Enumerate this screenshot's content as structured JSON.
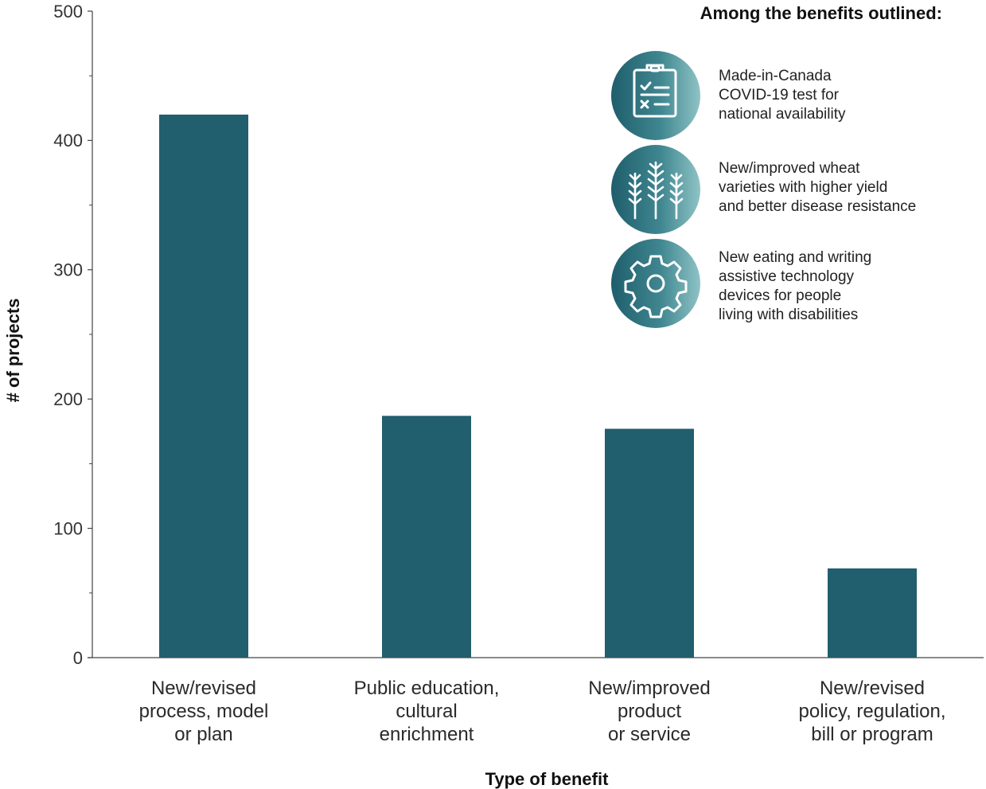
{
  "chart_data": {
    "type": "bar",
    "categories": [
      [
        "New/revised",
        "process, model",
        "or plan"
      ],
      [
        "Public education,",
        "cultural",
        "enrichment"
      ],
      [
        "New/improved",
        "product",
        "or service"
      ],
      [
        "New/revised",
        "policy, regulation,",
        "bill or program"
      ]
    ],
    "values": [
      420,
      187,
      177,
      69
    ],
    "xlabel": "Type of benefit",
    "ylabel": "# of projects",
    "ylim": [
      0,
      500
    ],
    "yticks": [
      "0",
      "100",
      "200",
      "300",
      "400",
      "500"
    ],
    "bar_color": "#215e6e",
    "grid": false
  },
  "panel": {
    "title": "Among the benefits outlined:",
    "items": [
      {
        "icon": "clipboard-checklist-icon",
        "lines": [
          "Made-in-Canada",
          "COVID-19 test for",
          "national availability"
        ]
      },
      {
        "icon": "wheat-icon",
        "lines": [
          "New/improved wheat",
          "varieties with higher yield",
          "and better disease resistance"
        ]
      },
      {
        "icon": "gear-icon",
        "lines": [
          "New eating and writing",
          "assistive technology",
          "devices for people",
          "living with disabilities"
        ]
      }
    ]
  }
}
